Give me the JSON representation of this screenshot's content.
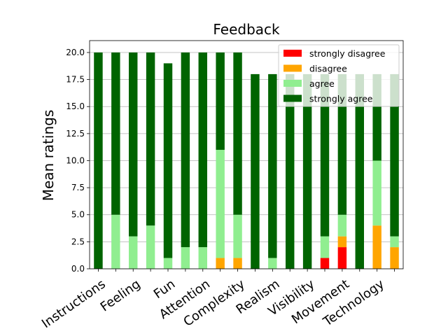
{
  "chart_data": {
    "type": "bar",
    "stacked": true,
    "title": "Feedback",
    "xlabel": "",
    "ylabel": "Mean ratings",
    "ylim": [
      0,
      21.1
    ],
    "yticks": [
      "0.0",
      "2.5",
      "5.0",
      "7.5",
      "10.0",
      "12.5",
      "15.0",
      "17.5",
      "20.0"
    ],
    "ytick_values": [
      0,
      2.5,
      5,
      7.5,
      10,
      12.5,
      15,
      17.5,
      20
    ],
    "grid": "horizontal",
    "legend_position": "top-right",
    "bar_count": 18,
    "category_labels": [
      "Instructions",
      "Feeling",
      "Fun",
      "Attention",
      "Complexity",
      "Realism",
      "Visibility",
      "Movement",
      "Technology"
    ],
    "series": [
      {
        "name": "strongly disagree",
        "color": "#ff0000",
        "values": [
          0,
          0,
          0,
          0,
          0,
          0,
          0,
          0,
          0,
          0,
          0,
          0,
          0,
          1,
          2,
          0,
          0,
          0
        ]
      },
      {
        "name": "disagree",
        "color": "#ffa500",
        "values": [
          0,
          0,
          0,
          0,
          0,
          0,
          0,
          1,
          1,
          0,
          0,
          0,
          0,
          0,
          1,
          0,
          4,
          2
        ]
      },
      {
        "name": "agree",
        "color": "#90ee90",
        "values": [
          0,
          5,
          3,
          4,
          1,
          2,
          2,
          10,
          4,
          0,
          1,
          0,
          0,
          2,
          2,
          0,
          6,
          1
        ]
      },
      {
        "name": "strongly agree",
        "color": "#006400",
        "values": [
          20,
          15,
          17,
          16,
          18,
          18,
          18,
          9,
          15,
          18,
          17,
          18,
          18,
          15,
          13,
          18,
          8,
          15
        ]
      }
    ]
  }
}
